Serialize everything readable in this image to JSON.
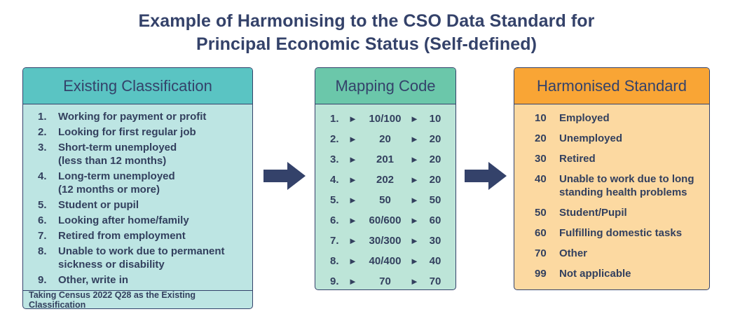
{
  "title_line1": "Example of Harmonising to the CSO Data Standard for",
  "title_line2": "Principal Economic Status (Self-defined)",
  "existing": {
    "header": "Existing Classification",
    "items": [
      {
        "num": "1.",
        "text": "Working for payment or profit"
      },
      {
        "num": "2.",
        "text": "Looking for first regular job"
      },
      {
        "num": "3.",
        "text": "Short-term unemployed\n(less than 12 months)"
      },
      {
        "num": "4.",
        "text": "Long-term unemployed\n(12 months or more)"
      },
      {
        "num": "5.",
        "text": "Student or pupil"
      },
      {
        "num": "6.",
        "text": "Looking after home/family"
      },
      {
        "num": "7.",
        "text": "Retired from employment"
      },
      {
        "num": "8.",
        "text": "Unable to work due to permanent\nsickness or disability"
      },
      {
        "num": "9.",
        "text": "Other, write in"
      }
    ],
    "footer": "Taking Census 2022 Q28 as the Existing Classification"
  },
  "mapping": {
    "header": "Mapping Code",
    "arrow_glyph": "►",
    "rows": [
      {
        "num": "1.",
        "source": "10/100",
        "target": "10"
      },
      {
        "num": "2.",
        "source": "20",
        "target": "20"
      },
      {
        "num": "3.",
        "source": "201",
        "target": "20"
      },
      {
        "num": "4.",
        "source": "202",
        "target": "20"
      },
      {
        "num": "5.",
        "source": "50",
        "target": "50"
      },
      {
        "num": "6.",
        "source": "60/600",
        "target": "60"
      },
      {
        "num": "7.",
        "source": "30/300",
        "target": "30"
      },
      {
        "num": "8.",
        "source": "40/400",
        "target": "40"
      },
      {
        "num": "9.",
        "source": "70",
        "target": "70"
      }
    ]
  },
  "harmonised": {
    "header": "Harmonised Standard",
    "items": [
      {
        "code": "10",
        "label": "Employed"
      },
      {
        "code": "20",
        "label": "Unemployed"
      },
      {
        "code": "30",
        "label": "Retired"
      },
      {
        "code": "40",
        "label": "Unable to work due to long\nstanding health problems"
      },
      {
        "code": "50",
        "label": "Student/Pupil"
      },
      {
        "code": "60",
        "label": "Fulfilling domestic tasks"
      },
      {
        "code": "70",
        "label": "Other"
      },
      {
        "code": "99",
        "label": "Not applicable"
      }
    ]
  },
  "colors": {
    "navy": "#34426a",
    "teal_header": "#5ac4c3",
    "teal_body": "#bde5e3",
    "green_header": "#6bc7aa",
    "green_body": "#bde5d8",
    "orange_header": "#f9a535",
    "orange_body": "#fcd9a1"
  }
}
